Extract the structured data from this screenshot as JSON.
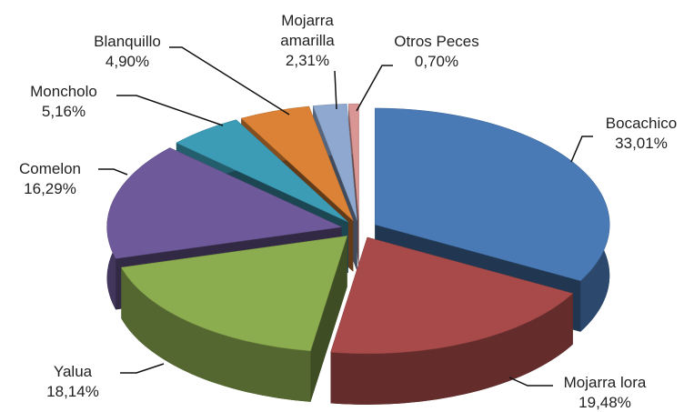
{
  "chart_data": {
    "type": "pie",
    "categories": [
      "Bocachico",
      "Mojarra lora",
      "Yalua",
      "Comelon",
      "Moncholo",
      "Blanquillo",
      "Mojarra amarilla",
      "Otros Peces"
    ],
    "values": [
      33.01,
      19.48,
      18.14,
      16.29,
      5.16,
      4.9,
      2.31,
      0.7
    ],
    "value_labels": [
      "33,01%",
      "19,48%",
      "18,14%",
      "16,29%",
      "5,16%",
      "4,90%",
      "2,31%",
      "0,70%"
    ],
    "colors": [
      "#4a7ab5",
      "#a84a4a",
      "#8cac50",
      "#6e5a9a",
      "#3c9cb6",
      "#dc8236",
      "#8ea8d0",
      "#d99694"
    ]
  }
}
